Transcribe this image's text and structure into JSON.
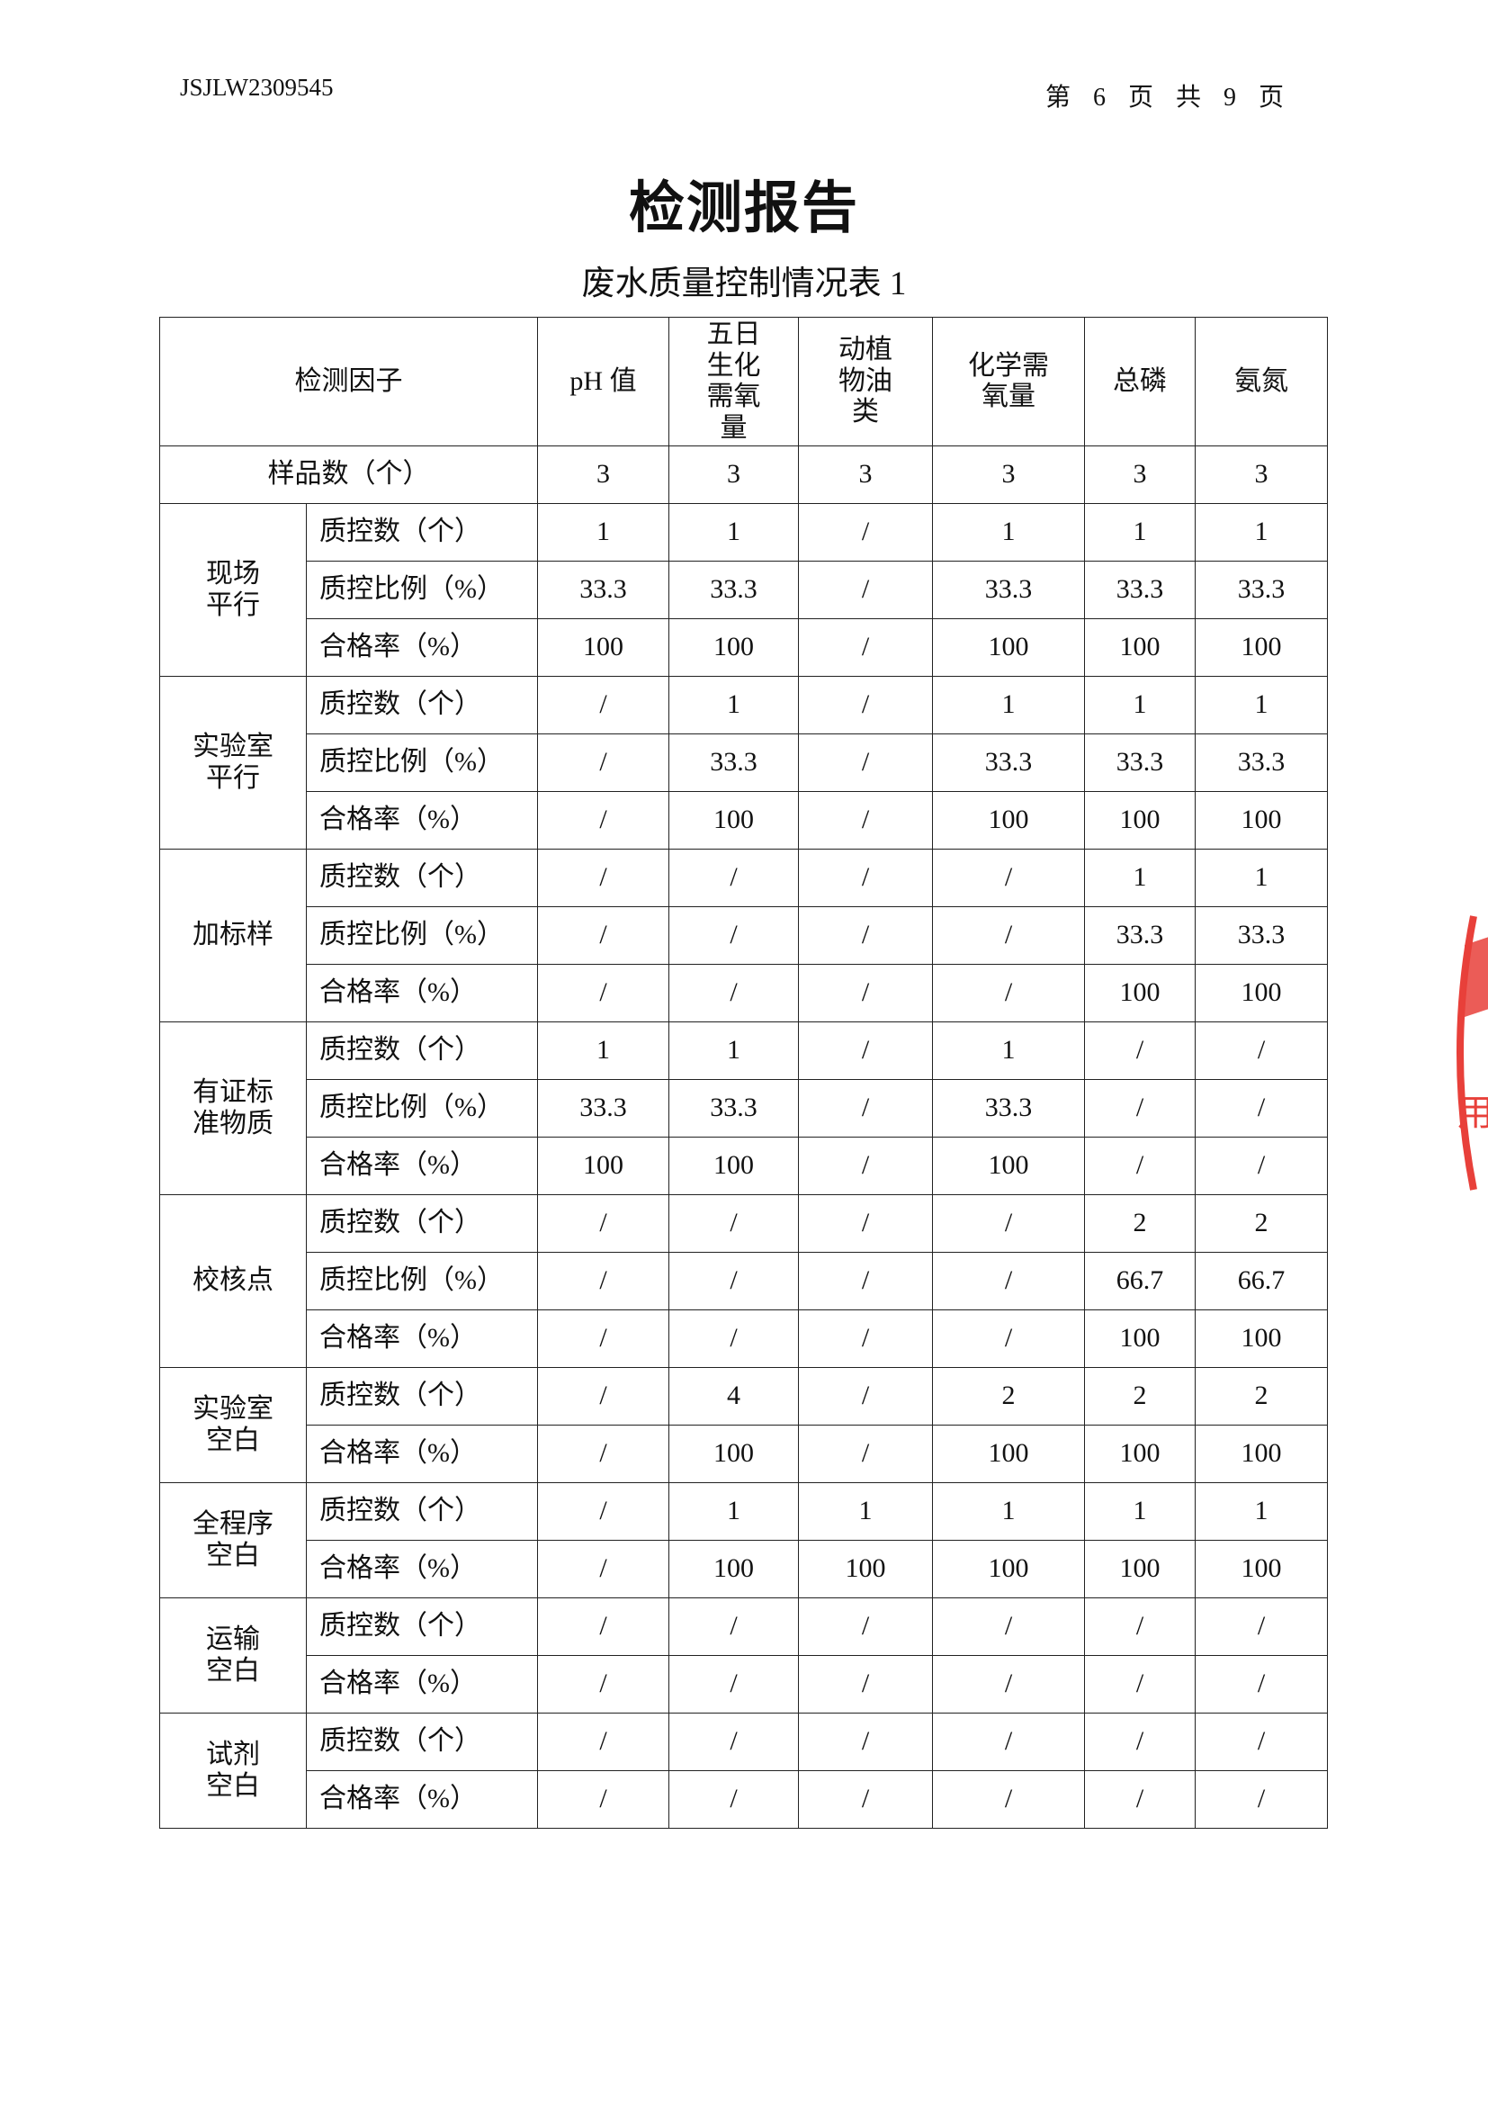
{
  "header": {
    "report_no": "JSJLW2309545",
    "page_info": "第 6 页 共 9 页"
  },
  "title": "检测报告",
  "subtitle": "废水质量控制情况表 1",
  "stamp": {
    "color": "#e8403a",
    "visible_text": "用"
  },
  "table": {
    "corner": "检测因子",
    "columns": [
      "pH 值",
      "五日\n生化\n需氧\n量",
      "动植\n物油\n类",
      "化学需\n氧量",
      "总磷",
      "氨氮"
    ],
    "sample_row": {
      "label": "样品数（个）",
      "values": [
        "3",
        "3",
        "3",
        "3",
        "3",
        "3"
      ]
    },
    "groups": [
      {
        "name": "现场\n平行",
        "rows": [
          {
            "label": "质控数（个）",
            "values": [
              "1",
              "1",
              "/",
              "1",
              "1",
              "1"
            ]
          },
          {
            "label": "质控比例（%）",
            "values": [
              "33.3",
              "33.3",
              "/",
              "33.3",
              "33.3",
              "33.3"
            ]
          },
          {
            "label": "合格率（%）",
            "values": [
              "100",
              "100",
              "/",
              "100",
              "100",
              "100"
            ]
          }
        ]
      },
      {
        "name": "实验室\n平行",
        "rows": [
          {
            "label": "质控数（个）",
            "values": [
              "/",
              "1",
              "/",
              "1",
              "1",
              "1"
            ]
          },
          {
            "label": "质控比例（%）",
            "values": [
              "/",
              "33.3",
              "/",
              "33.3",
              "33.3",
              "33.3"
            ]
          },
          {
            "label": "合格率（%）",
            "values": [
              "/",
              "100",
              "/",
              "100",
              "100",
              "100"
            ]
          }
        ]
      },
      {
        "name": "加标样",
        "rows": [
          {
            "label": "质控数（个）",
            "values": [
              "/",
              "/",
              "/",
              "/",
              "1",
              "1"
            ]
          },
          {
            "label": "质控比例（%）",
            "values": [
              "/",
              "/",
              "/",
              "/",
              "33.3",
              "33.3"
            ]
          },
          {
            "label": "合格率（%）",
            "values": [
              "/",
              "/",
              "/",
              "/",
              "100",
              "100"
            ]
          }
        ]
      },
      {
        "name": "有证标\n准物质",
        "rows": [
          {
            "label": "质控数（个）",
            "values": [
              "1",
              "1",
              "/",
              "1",
              "/",
              "/"
            ]
          },
          {
            "label": "质控比例（%）",
            "values": [
              "33.3",
              "33.3",
              "/",
              "33.3",
              "/",
              "/"
            ]
          },
          {
            "label": "合格率（%）",
            "values": [
              "100",
              "100",
              "/",
              "100",
              "/",
              "/"
            ]
          }
        ]
      },
      {
        "name": "校核点",
        "rows": [
          {
            "label": "质控数（个）",
            "values": [
              "/",
              "/",
              "/",
              "/",
              "2",
              "2"
            ]
          },
          {
            "label": "质控比例（%）",
            "values": [
              "/",
              "/",
              "/",
              "/",
              "66.7",
              "66.7"
            ]
          },
          {
            "label": "合格率（%）",
            "values": [
              "/",
              "/",
              "/",
              "/",
              "100",
              "100"
            ]
          }
        ]
      },
      {
        "name": "实验室\n空白",
        "rows": [
          {
            "label": "质控数（个）",
            "values": [
              "/",
              "4",
              "/",
              "2",
              "2",
              "2"
            ]
          },
          {
            "label": "合格率（%）",
            "values": [
              "/",
              "100",
              "/",
              "100",
              "100",
              "100"
            ]
          }
        ]
      },
      {
        "name": "全程序\n空白",
        "rows": [
          {
            "label": "质控数（个）",
            "values": [
              "/",
              "1",
              "1",
              "1",
              "1",
              "1"
            ]
          },
          {
            "label": "合格率（%）",
            "values": [
              "/",
              "100",
              "100",
              "100",
              "100",
              "100"
            ]
          }
        ]
      },
      {
        "name": "运输\n空白",
        "rows": [
          {
            "label": "质控数（个）",
            "values": [
              "/",
              "/",
              "/",
              "/",
              "/",
              "/"
            ]
          },
          {
            "label": "合格率（%）",
            "values": [
              "/",
              "/",
              "/",
              "/",
              "/",
              "/"
            ]
          }
        ]
      },
      {
        "name": "试剂\n空白",
        "rows": [
          {
            "label": "质控数（个）",
            "values": [
              "/",
              "/",
              "/",
              "/",
              "/",
              "/"
            ]
          },
          {
            "label": "合格率（%）",
            "values": [
              "/",
              "/",
              "/",
              "/",
              "/",
              "/"
            ]
          }
        ]
      }
    ]
  }
}
